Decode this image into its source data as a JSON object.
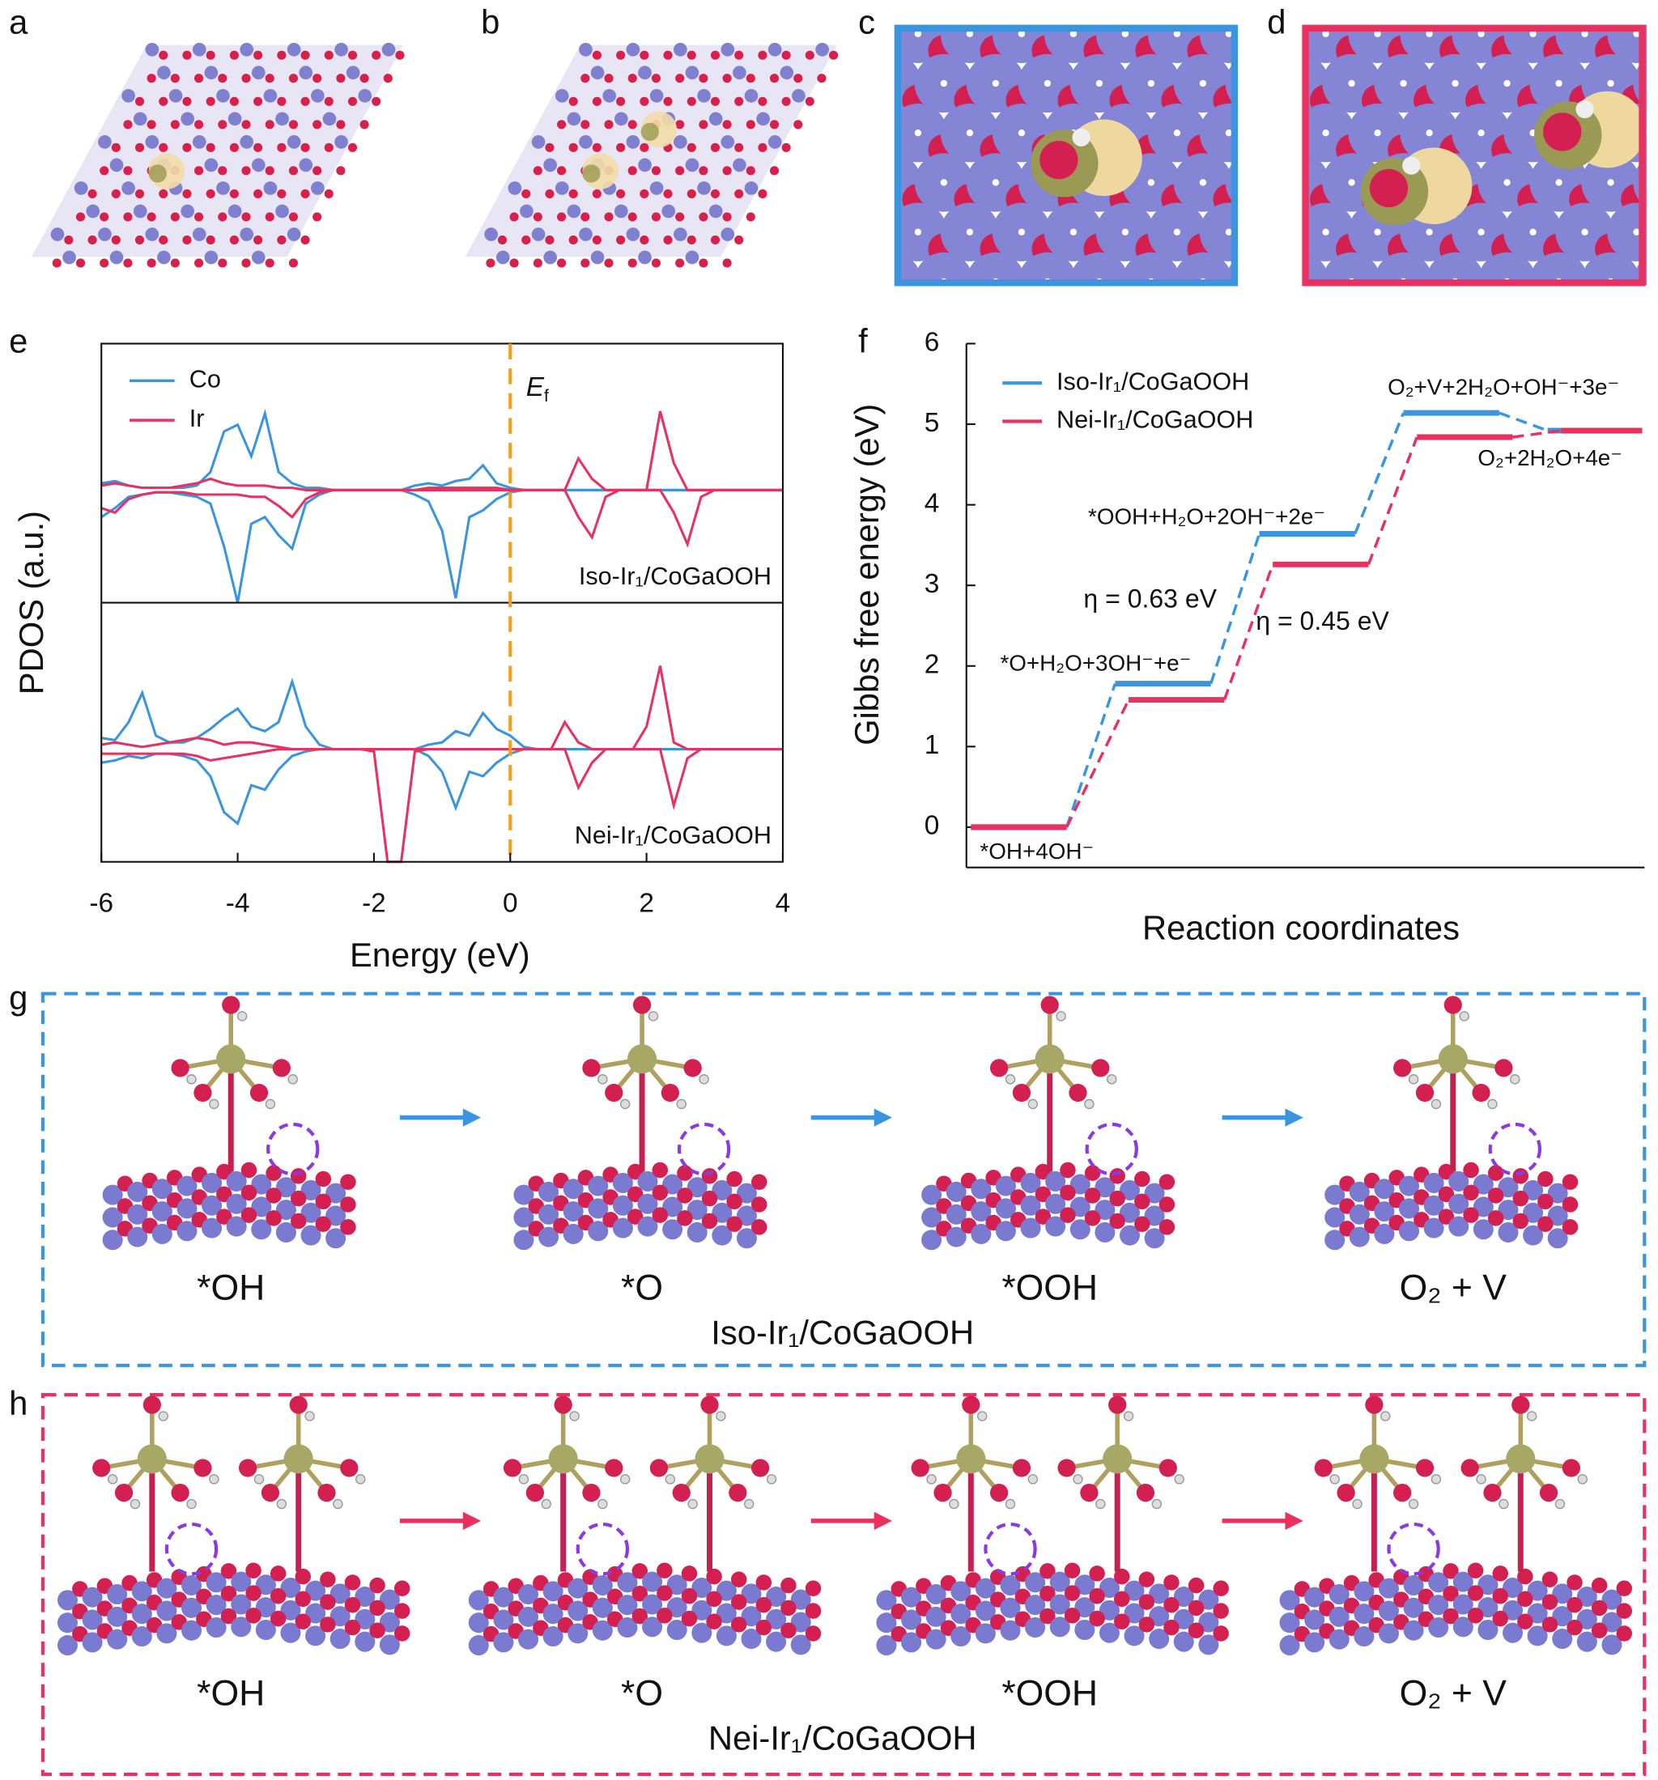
{
  "chart_data": [
    {
      "type": "line",
      "xlabel": "Energy (eV)",
      "ylabel": "PDOS (a.u.)",
      "xlim": [
        -6,
        4
      ],
      "xticks": [
        -6,
        -4,
        -2,
        0,
        2,
        4
      ],
      "ylim": [
        -5,
        6.5
      ],
      "fermi_level": 0,
      "fermi_label": "E",
      "fermi_label_sub": "f",
      "fermi_color": "#f0a020",
      "legend": "upper left",
      "x": [
        -6,
        -5.8,
        -5.6,
        -5.4,
        -5.2,
        -5,
        -4.8,
        -4.6,
        -4.4,
        -4.2,
        -4,
        -3.8,
        -3.6,
        -3.4,
        -3.2,
        -3,
        -2.8,
        -2.6,
        -2.4,
        -2.2,
        -2,
        -1.8,
        -1.6,
        -1.4,
        -1.2,
        -1,
        -0.8,
        -0.6,
        -0.4,
        -0.2,
        0,
        0.2,
        0.4,
        0.6,
        0.8,
        1,
        1.2,
        1.4,
        1.6,
        1.8,
        2,
        2.2,
        2.4,
        2.6,
        2.8,
        3,
        3.2,
        3.4,
        3.6,
        3.8,
        4
      ],
      "panels": [
        {
          "label": "Iso-Ir₁/CoGaOOH",
          "series": [
            {
              "name": "Co",
              "color": "#3a95e0",
              "up": [
                0.3,
                0.4,
                0.2,
                0.1,
                0.1,
                0.1,
                0.1,
                0.2,
                0.8,
                2.6,
                2.9,
                1.5,
                3.4,
                0.8,
                0.3,
                0.1,
                0.1,
                0,
                0,
                0,
                0,
                0,
                0,
                0.2,
                0.3,
                0.2,
                0.4,
                0.5,
                1.1,
                0.3,
                0.1,
                0,
                0,
                0,
                0,
                0,
                0,
                0,
                0,
                0,
                0,
                0,
                0,
                0,
                0,
                0,
                0,
                0,
                0,
                0,
                0
              ],
              "down": [
                -1.2,
                -0.8,
                -0.3,
                -0.2,
                -0.1,
                -0.1,
                -0.2,
                -0.3,
                -0.6,
                -2.5,
                -5,
                -1.5,
                -1.2,
                -2,
                -2.6,
                -0.6,
                -0.2,
                0,
                0,
                0,
                0,
                0,
                0,
                -0.2,
                -0.5,
                -1.8,
                -4.8,
                -1.2,
                -0.9,
                -0.4,
                -0.1,
                0,
                0,
                0,
                0,
                0,
                0,
                0,
                0,
                0,
                0,
                0,
                0,
                0,
                0,
                0,
                0,
                0,
                0,
                0,
                0
              ]
            },
            {
              "name": "Ir",
              "color": "#e8315e",
              "up": [
                0.2,
                0.3,
                0.2,
                0.1,
                0.1,
                0.1,
                0.2,
                0.3,
                0.5,
                0.3,
                0.2,
                0.2,
                0.2,
                0.1,
                0.1,
                0,
                0,
                0,
                0,
                0,
                0,
                0,
                0,
                0,
                0.1,
                0.1,
                0.1,
                0.1,
                0.1,
                0.1,
                0,
                0,
                0,
                0,
                0,
                1.4,
                0.5,
                0,
                0,
                0,
                0,
                3.5,
                1.2,
                0,
                0,
                0,
                0,
                0,
                0,
                0,
                0
              ],
              "down": [
                -0.8,
                -1,
                -0.4,
                -0.2,
                -0.1,
                -0.1,
                -0.1,
                -0.2,
                -0.2,
                -0.2,
                -0.2,
                -0.3,
                -0.3,
                -0.7,
                -1.2,
                -0.4,
                -0.1,
                0,
                0,
                0,
                0,
                0,
                0,
                0,
                0,
                0,
                0,
                0,
                0,
                0,
                0,
                0,
                0,
                0,
                0,
                -1.2,
                -2.1,
                -0.3,
                0,
                0,
                0,
                0,
                -1,
                -2.4,
                -0.3,
                0,
                0,
                0,
                0,
                0,
                0
              ]
            }
          ]
        },
        {
          "label": "Nei-Ir₁/CoGaOOH",
          "series": [
            {
              "name": "Co",
              "color": "#3a95e0",
              "up": [
                0.5,
                0.4,
                1.2,
                2.5,
                0.6,
                0.3,
                0.3,
                0.5,
                0.9,
                1.4,
                1.8,
                1,
                0.8,
                1.2,
                3,
                1,
                0.2,
                0,
                0,
                0,
                0,
                0,
                0,
                0,
                0.2,
                0.3,
                0.8,
                0.6,
                1.6,
                0.9,
                0.6,
                0.1,
                0,
                0,
                0,
                0,
                0,
                0,
                0,
                0,
                0,
                0,
                0,
                0,
                0,
                0,
                0,
                0,
                0,
                0,
                0
              ],
              "down": [
                -0.6,
                -0.5,
                -0.3,
                -0.4,
                -0.2,
                -0.2,
                -0.3,
                -0.5,
                -1.2,
                -2.8,
                -3.3,
                -1.6,
                -1.8,
                -0.9,
                -0.3,
                -0.1,
                0,
                0,
                0,
                0,
                0,
                0,
                0,
                0,
                -0.3,
                -1,
                -2.6,
                -1,
                -1.2,
                -0.6,
                -0.2,
                0,
                0,
                0,
                0,
                0,
                0,
                0,
                0,
                0,
                0,
                0,
                0,
                0,
                0,
                0,
                0,
                0,
                0,
                0,
                0
              ]
            },
            {
              "name": "Ir",
              "color": "#e8315e",
              "up": [
                0.2,
                0.3,
                0.2,
                0.1,
                0.2,
                0.3,
                0.4,
                0.5,
                0.4,
                0.2,
                0.3,
                0.3,
                0.2,
                0.1,
                0,
                0,
                0,
                0,
                0,
                0,
                0,
                0,
                0,
                0,
                0,
                0,
                0,
                0,
                0,
                0,
                0,
                0,
                0,
                0,
                1.2,
                0.3,
                0,
                0,
                0,
                0,
                1,
                3.7,
                0.3,
                0,
                0,
                0,
                0,
                0,
                0,
                0,
                0
              ],
              "down": [
                -0.2,
                -0.2,
                -0.2,
                -0.2,
                -0.2,
                -0.2,
                -0.2,
                -0.3,
                -0.5,
                -0.4,
                -0.3,
                -0.2,
                -0.1,
                0,
                0,
                0,
                0,
                0,
                0,
                0,
                -0.1,
                -5,
                -5,
                -0.1,
                0,
                0,
                0,
                0,
                0,
                0,
                0,
                0,
                0,
                0,
                0,
                -1.7,
                -0.6,
                0,
                0,
                0,
                0,
                0,
                -2.5,
                -0.4,
                0,
                0,
                0,
                0,
                0,
                0,
                0
              ]
            }
          ]
        }
      ]
    },
    {
      "type": "step",
      "ylabel": "Gibbs free energy (eV)",
      "xlabel": "Reaction coordinates",
      "ylim": [
        -0.5,
        6
      ],
      "yticks": [
        0,
        1,
        2,
        3,
        4,
        5,
        6
      ],
      "legend": "upper left",
      "categories": [
        "*OH+4OH⁻",
        "*O+H₂O+3OH⁻+e⁻",
        "*OOH+H₂O+2OH⁻+2e⁻",
        "O₂+V+2H₂O+OH⁻+3e⁻",
        "O₂+2H₂O+4e⁻"
      ],
      "series": [
        {
          "name": "Iso-Ir₁/CoGaOOH",
          "color": "#3a95e0",
          "values": [
            0,
            1.78,
            3.64,
            5.14,
            4.92
          ]
        },
        {
          "name": "Nei-Ir₁/CoGaOOH",
          "color": "#e8315e",
          "values": [
            0,
            1.58,
            3.26,
            4.84,
            4.92
          ]
        }
      ],
      "annotations": [
        {
          "text": "η = 0.63 eV",
          "color": "#3a95e0"
        },
        {
          "text": "η = 0.45 eV",
          "color": "#e8315e"
        }
      ]
    }
  ],
  "figure": {
    "panel_labels": [
      "a",
      "b",
      "c",
      "d",
      "e",
      "f",
      "g",
      "h"
    ],
    "g": {
      "states": [
        "*OH",
        "*O",
        "*OOH",
        "O₂ + V"
      ],
      "caption": "Iso-Ir₁/CoGaOOH",
      "color": "#3a95e0"
    },
    "h": {
      "states": [
        "*OH",
        "*O",
        "*OOH",
        "O₂ + V"
      ],
      "caption": "Nei-Ir₁/CoGaOOH",
      "color": "#e8315e"
    }
  }
}
